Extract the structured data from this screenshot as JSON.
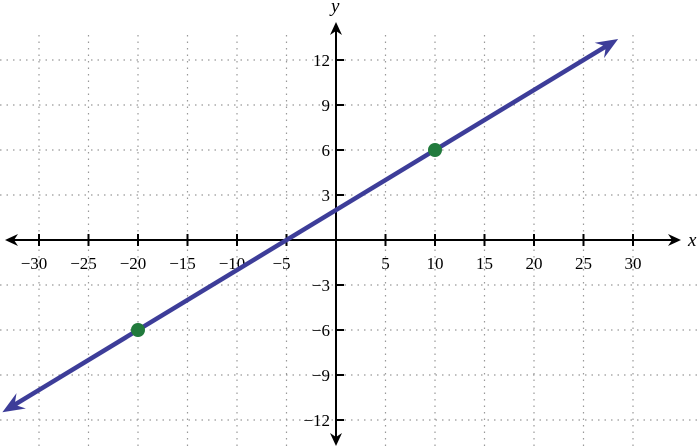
{
  "chart_data": {
    "type": "line",
    "xlabel": "x",
    "ylabel": "y",
    "xlim": [
      -34,
      35
    ],
    "ylim": [
      -13.5,
      14
    ],
    "x_ticks": [
      -30,
      -25,
      -20,
      -15,
      -10,
      -5,
      5,
      10,
      15,
      20,
      25,
      30
    ],
    "y_ticks": [
      -12,
      -9,
      -6,
      -3,
      3,
      6,
      9,
      12
    ],
    "x_tick_labels": [
      "−30",
      "−25",
      "−20",
      "−15",
      "−10",
      "−5",
      "5",
      "10",
      "15",
      "20",
      "25",
      "30"
    ],
    "y_tick_labels": [
      "−12",
      "−9",
      "−6",
      "−3",
      "3",
      "6",
      "9",
      "12"
    ],
    "grid": true,
    "line": {
      "slope": 0.4,
      "intercept": 2,
      "x_range": [
        -33.7,
        28.5
      ],
      "arrows": "both",
      "color": "#3d3d99"
    },
    "points": [
      {
        "x": -20,
        "y": -6
      },
      {
        "x": 10,
        "y": 6
      }
    ],
    "point_color": "#217a3c"
  }
}
